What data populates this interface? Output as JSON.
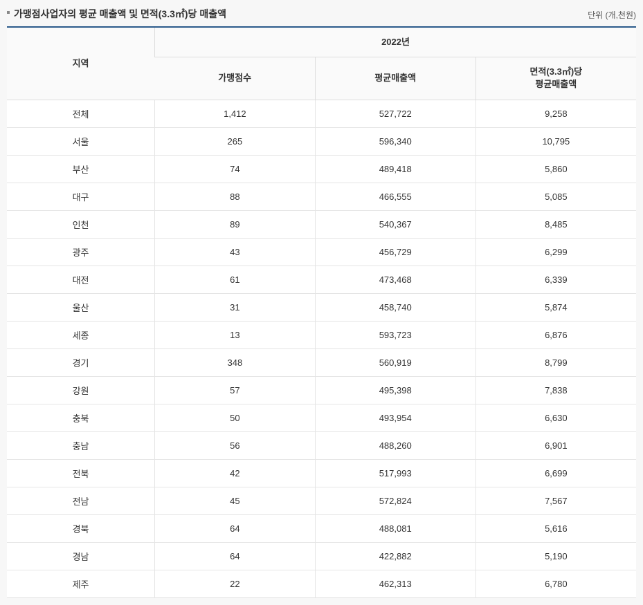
{
  "title": "가맹점사업자의 평균 매출액 및 면적(3.3㎡)당 매출액",
  "unit": "단위 (개,천원)",
  "table": {
    "header": {
      "region": "지역",
      "year": "2022년",
      "count": "가맹점수",
      "avgRevenue": "평균매출액",
      "areaRevenue_line1": "면적(3.3㎡)당",
      "areaRevenue_line2": "평균매출액"
    },
    "rows": [
      {
        "region": "전체",
        "count": "1,412",
        "avg": "527,722",
        "area": "9,258"
      },
      {
        "region": "서울",
        "count": "265",
        "avg": "596,340",
        "area": "10,795"
      },
      {
        "region": "부산",
        "count": "74",
        "avg": "489,418",
        "area": "5,860"
      },
      {
        "region": "대구",
        "count": "88",
        "avg": "466,555",
        "area": "5,085"
      },
      {
        "region": "인천",
        "count": "89",
        "avg": "540,367",
        "area": "8,485"
      },
      {
        "region": "광주",
        "count": "43",
        "avg": "456,729",
        "area": "6,299"
      },
      {
        "region": "대전",
        "count": "61",
        "avg": "473,468",
        "area": "6,339"
      },
      {
        "region": "울산",
        "count": "31",
        "avg": "458,740",
        "area": "5,874"
      },
      {
        "region": "세종",
        "count": "13",
        "avg": "593,723",
        "area": "6,876"
      },
      {
        "region": "경기",
        "count": "348",
        "avg": "560,919",
        "area": "8,799"
      },
      {
        "region": "강원",
        "count": "57",
        "avg": "495,398",
        "area": "7,838"
      },
      {
        "region": "충북",
        "count": "50",
        "avg": "493,954",
        "area": "6,630"
      },
      {
        "region": "충남",
        "count": "56",
        "avg": "488,260",
        "area": "6,901"
      },
      {
        "region": "전북",
        "count": "42",
        "avg": "517,993",
        "area": "6,699"
      },
      {
        "region": "전남",
        "count": "45",
        "avg": "572,824",
        "area": "7,567"
      },
      {
        "region": "경북",
        "count": "64",
        "avg": "488,081",
        "area": "5,616"
      },
      {
        "region": "경남",
        "count": "64",
        "avg": "422,882",
        "area": "5,190"
      },
      {
        "region": "제주",
        "count": "22",
        "avg": "462,313",
        "area": "6,780"
      }
    ]
  },
  "styling": {
    "background_color": "#f7f7f7",
    "table_background": "#ffffff",
    "border_top_color": "#2a5a8a",
    "border_top_width": 2,
    "header_background": "#fafafa",
    "border_color": "#e5e5e5",
    "header_border_color": "#ddd",
    "text_color": "#333",
    "title_fontsize": 14,
    "unit_fontsize": 12,
    "cell_fontsize": 13,
    "column_widths": {
      "region": 218,
      "count": 236,
      "avg": 236,
      "area": 236
    }
  }
}
